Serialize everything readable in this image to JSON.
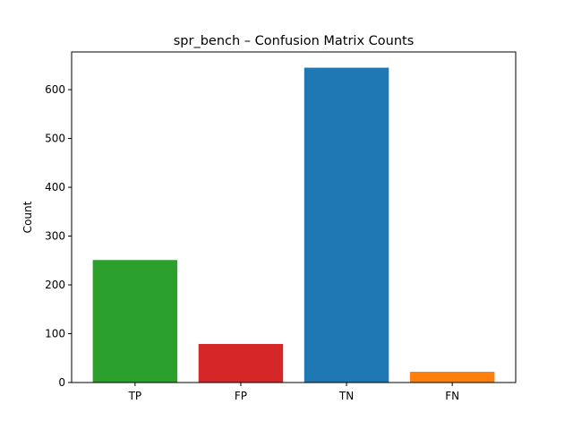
{
  "chart_data": {
    "type": "bar",
    "title": "spr_bench – Confusion Matrix Counts",
    "xlabel": "",
    "ylabel": "Count",
    "categories": [
      "TP",
      "FP",
      "TN",
      "FN"
    ],
    "values": [
      251,
      79,
      645,
      22
    ],
    "colors": [
      "#2ca02c",
      "#d62728",
      "#1f77b4",
      "#ff7f0e"
    ],
    "ylim": [
      0,
      677.25
    ],
    "yticks": [
      0,
      100,
      200,
      300,
      400,
      500,
      600
    ],
    "grid": false,
    "legend": "none"
  }
}
